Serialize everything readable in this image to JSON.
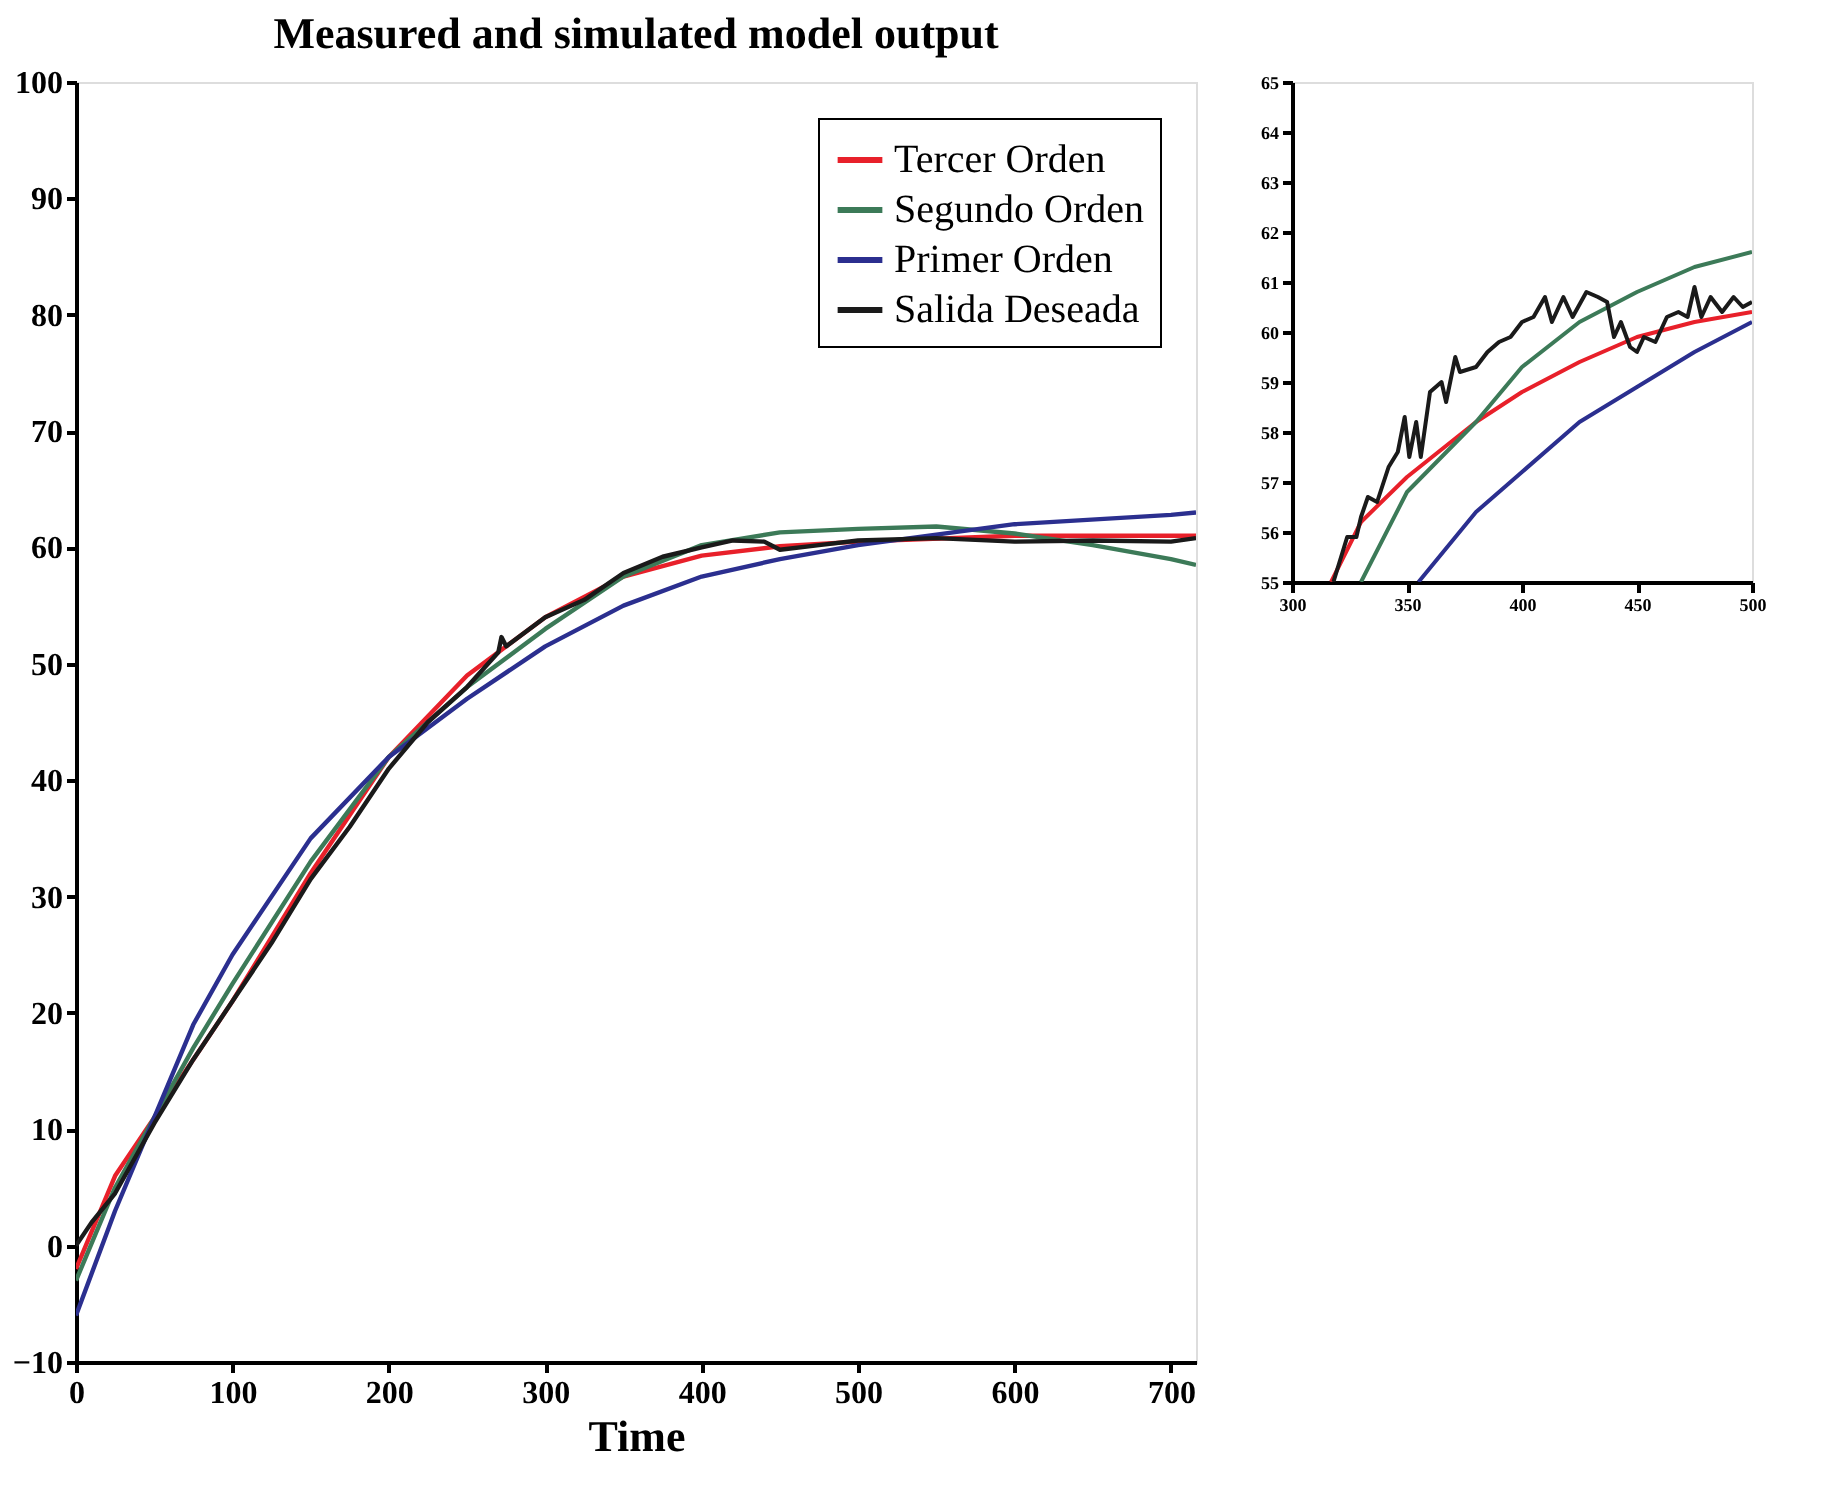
{
  "chart_data": [
    {
      "type": "line",
      "title": "Measured and simulated model output",
      "xlabel": "Time",
      "xlim": [
        0,
        716
      ],
      "xticks": [
        0,
        100,
        200,
        300,
        400,
        500,
        600,
        700
      ],
      "ylim": [
        -10,
        100
      ],
      "yticks": [
        -10,
        0,
        10,
        20,
        30,
        40,
        50,
        60,
        70,
        80,
        90,
        100
      ],
      "grid": false,
      "legend": "top right",
      "line_style": "solid",
      "marker": "none",
      "series": [
        {
          "name": "Tercer Orden",
          "color": "#e8202a",
          "x": [
            0,
            25,
            50,
            75,
            100,
            150,
            200,
            250,
            300,
            350,
            400,
            450,
            500,
            600,
            700,
            716
          ],
          "values": [
            -2,
            6,
            11,
            16,
            21,
            32,
            42,
            49,
            54,
            57.5,
            59.3,
            60.1,
            60.5,
            61,
            61,
            61
          ]
        },
        {
          "name": "Segundo Orden",
          "color": "#3c7a58",
          "x": [
            0,
            25,
            50,
            75,
            100,
            150,
            200,
            250,
            300,
            350,
            400,
            450,
            500,
            550,
            600,
            650,
            700,
            716
          ],
          "values": [
            -3,
            5,
            11,
            17,
            22.5,
            33,
            42,
            48,
            53,
            57.5,
            60.2,
            61.3,
            61.6,
            61.8,
            61.2,
            60.2,
            59,
            58.5
          ]
        },
        {
          "name": "Primer Orden",
          "color": "#2b2f8f",
          "x": [
            0,
            25,
            50,
            75,
            100,
            150,
            200,
            250,
            300,
            350,
            400,
            450,
            500,
            600,
            700,
            716
          ],
          "values": [
            -6,
            3,
            11,
            19,
            25,
            35,
            42,
            47,
            51.5,
            55,
            57.5,
            59,
            60.2,
            62,
            62.8,
            63
          ]
        },
        {
          "name": "Salida Deseada",
          "color": "#1a1a1a",
          "x": [
            0,
            10,
            25,
            50,
            75,
            100,
            125,
            150,
            175,
            200,
            225,
            250,
            270,
            272,
            275,
            300,
            325,
            350,
            375,
            400,
            420,
            440,
            450,
            475,
            500,
            550,
            600,
            650,
            700,
            716
          ],
          "values": [
            0,
            2,
            4.5,
            10.5,
            16,
            21,
            26,
            31.5,
            36,
            41,
            45,
            48,
            51,
            52.3,
            51.5,
            54,
            55.5,
            57.8,
            59.2,
            60,
            60.6,
            60.5,
            59.8,
            60.2,
            60.6,
            60.8,
            60.5,
            60.6,
            60.5,
            60.8
          ]
        }
      ]
    },
    {
      "type": "line",
      "xlim": [
        300,
        500
      ],
      "xticks": [
        300,
        350,
        400,
        450,
        500
      ],
      "ylim": [
        55,
        65
      ],
      "yticks": [
        55,
        56,
        57,
        58,
        59,
        60,
        61,
        62,
        63,
        64,
        65
      ],
      "grid": false,
      "legend": false,
      "line_style": "solid",
      "marker": "none",
      "series": [
        {
          "color": "#e8202a",
          "x": [
            317,
            330,
            350,
            380,
            400,
            425,
            450,
            475,
            500
          ],
          "values": [
            55,
            56.2,
            57.1,
            58.2,
            58.8,
            59.4,
            59.9,
            60.2,
            60.4
          ]
        },
        {
          "color": "#3c7a58",
          "x": [
            330,
            350,
            380,
            400,
            425,
            450,
            475,
            500
          ],
          "values": [
            55,
            56.8,
            58.2,
            59.3,
            60.2,
            60.8,
            61.3,
            61.6
          ]
        },
        {
          "color": "#2b2f8f",
          "x": [
            355,
            380,
            400,
            425,
            450,
            475,
            500
          ],
          "values": [
            55,
            56.4,
            57.2,
            58.2,
            58.9,
            59.6,
            60.2
          ]
        },
        {
          "color": "#1a1a1a",
          "x": [
            318,
            322,
            324,
            328,
            330,
            333,
            337,
            342,
            346,
            349,
            351,
            354,
            356,
            360,
            365,
            367,
            371,
            373,
            380,
            385,
            390,
            395,
            400,
            405,
            410,
            413,
            418,
            422,
            428,
            433,
            437,
            440,
            443,
            447,
            450,
            453,
            458,
            463,
            468,
            472,
            475,
            478,
            482,
            487,
            492,
            496,
            500
          ],
          "values": [
            55,
            55.6,
            55.9,
            55.9,
            56.3,
            56.7,
            56.6,
            57.3,
            57.6,
            58.3,
            57.5,
            58.2,
            57.5,
            58.8,
            59,
            58.6,
            59.5,
            59.2,
            59.3,
            59.6,
            59.8,
            59.9,
            60.2,
            60.3,
            60.7,
            60.2,
            60.7,
            60.3,
            60.8,
            60.7,
            60.6,
            59.9,
            60.2,
            59.7,
            59.6,
            59.9,
            59.8,
            60.3,
            60.4,
            60.3,
            60.9,
            60.3,
            60.7,
            60.4,
            60.7,
            60.5,
            60.6
          ]
        }
      ]
    }
  ]
}
